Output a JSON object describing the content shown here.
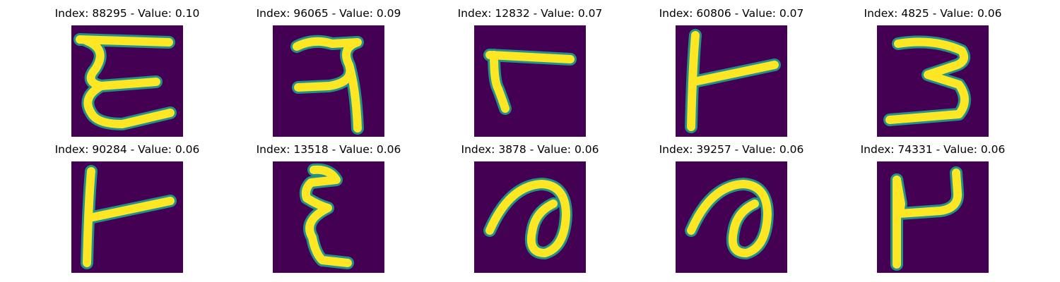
{
  "figure": {
    "colors": {
      "background": "#440154",
      "edge": "#21918c",
      "stroke": "#fde725"
    },
    "panels": [
      {
        "title": "Index: 88295 - Value: 0.10",
        "glyph": "epsilon-boxed"
      },
      {
        "title": "Index: 96065 - Value: 0.09",
        "glyph": "hook-two"
      },
      {
        "title": "Index: 12832 - Value: 0.07",
        "glyph": "flag-hook"
      },
      {
        "title": "Index: 60806 - Value: 0.07",
        "glyph": "bar-with-arm"
      },
      {
        "title": "Index: 4825 - Value: 0.06",
        "glyph": "three"
      },
      {
        "title": "Index: 90284 - Value: 0.06",
        "glyph": "bar-with-arm"
      },
      {
        "title": "Index: 13518 - Value: 0.06",
        "glyph": "epsilon-looped"
      },
      {
        "title": "Index: 3878 - Value: 0.06",
        "glyph": "loop-curl"
      },
      {
        "title": "Index: 39257 - Value: 0.06",
        "glyph": "loop-curl"
      },
      {
        "title": "Index: 74331 - Value: 0.06",
        "glyph": "u-on-stem"
      }
    ]
  }
}
